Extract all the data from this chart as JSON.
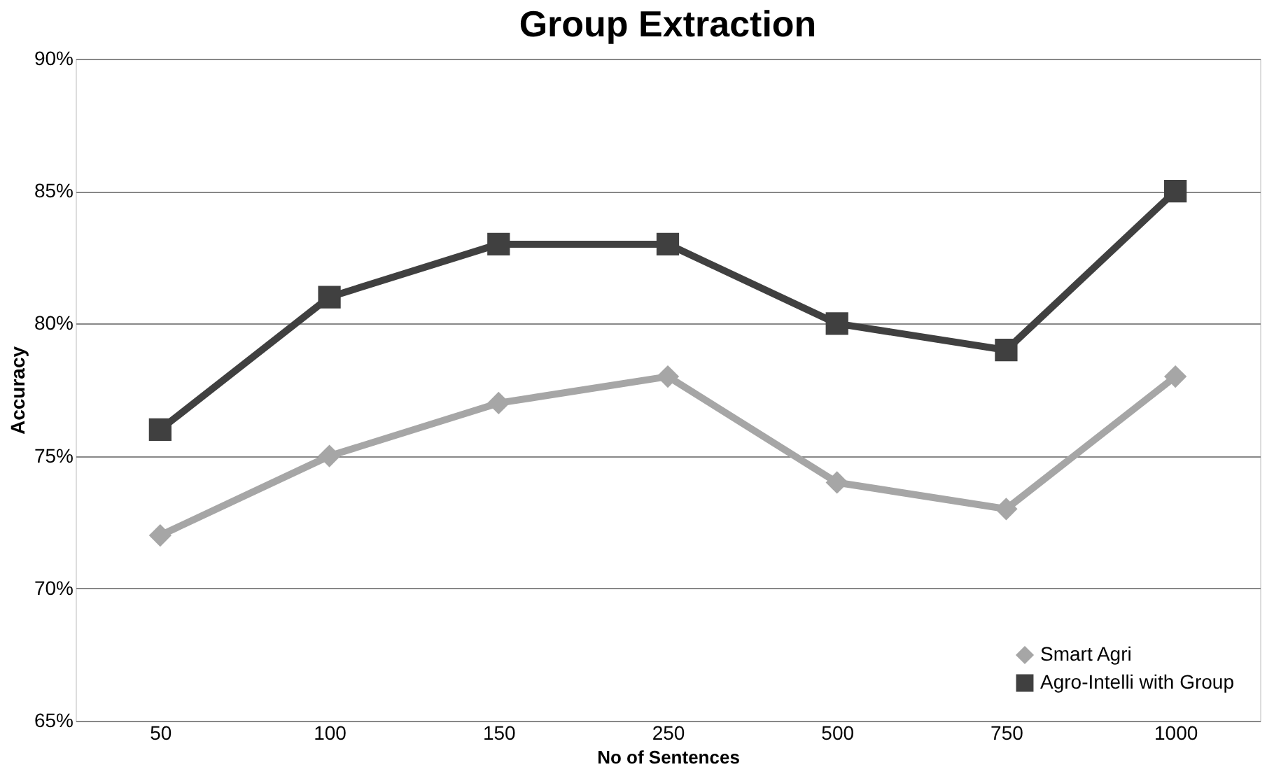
{
  "chart_data": {
    "type": "line",
    "title": "Group Extraction",
    "xlabel": "No of Sentences",
    "ylabel": "Accuracy",
    "categories": [
      "50",
      "100",
      "150",
      "250",
      "500",
      "750",
      "1000"
    ],
    "series": [
      {
        "name": "Smart Agri",
        "color": "#a6a6a6",
        "marker": "diamond",
        "values": [
          72,
          75,
          77,
          78,
          74,
          73,
          78
        ]
      },
      {
        "name": "Agro-Intelli with Group",
        "color": "#404040",
        "marker": "square",
        "values": [
          76,
          81,
          83,
          83,
          80,
          79,
          85
        ]
      }
    ],
    "ylim": [
      65,
      90
    ],
    "yticks": [
      {
        "value": 65,
        "label": "65%"
      },
      {
        "value": 70,
        "label": "70%"
      },
      {
        "value": 75,
        "label": "75%"
      },
      {
        "value": 80,
        "label": "80%"
      },
      {
        "value": 85,
        "label": "85%"
      },
      {
        "value": 90,
        "label": "90%"
      }
    ],
    "grid": "y",
    "legend": "bottom right",
    "line_style": "solid"
  }
}
